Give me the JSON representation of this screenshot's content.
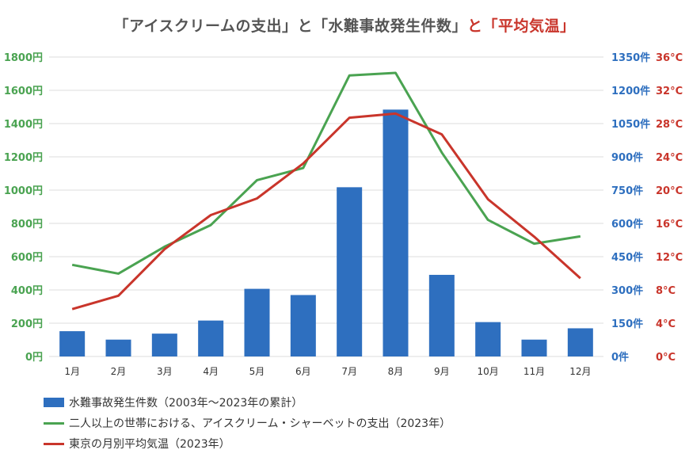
{
  "title": {
    "part1": "「アイスクリームの支出」と「水難事故発生件数」",
    "part2": "と「平均気温」"
  },
  "chart_data": {
    "type": "bar+line",
    "categories": [
      "1月",
      "2月",
      "3月",
      "4月",
      "5月",
      "6月",
      "7月",
      "8月",
      "9月",
      "10月",
      "11月",
      "12月"
    ],
    "series": [
      {
        "name": "水難事故発生件数（2003年〜2023年の累計）",
        "type": "bar",
        "axis": "right1",
        "color": "#2e6fbf",
        "values": [
          114,
          76,
          103,
          162,
          305,
          277,
          763,
          1113,
          368,
          155,
          76,
          127
        ]
      },
      {
        "name": "二人以上の世帯における、アイスクリーム・シャーベットの支出（2023年）",
        "type": "line",
        "axis": "left",
        "color": "#4aa351",
        "values": [
          551,
          498,
          660,
          790,
          1060,
          1133,
          1689,
          1705,
          1226,
          821,
          678,
          722
        ]
      },
      {
        "name": "東京の月別平均気温（2023年）",
        "type": "line",
        "axis": "right2",
        "color": "#c9352b",
        "values": [
          5.7,
          7.3,
          12.9,
          17.0,
          19.0,
          23.2,
          28.7,
          29.2,
          26.7,
          18.9,
          14.4,
          9.4
        ]
      }
    ],
    "axes": {
      "left": {
        "range": [
          0,
          1800
        ],
        "ticks": [
          "0円",
          "200円",
          "400円",
          "600円",
          "800円",
          "1000円",
          "1200円",
          "1400円",
          "1600円",
          "1800円"
        ],
        "color": "#4aa351"
      },
      "right1": {
        "range": [
          0,
          1350
        ],
        "ticks": [
          "0件",
          "150件",
          "300件",
          "450件",
          "600件",
          "750件",
          "900件",
          "1050件",
          "1200件",
          "1350件"
        ],
        "color": "#2e6fbf"
      },
      "right2": {
        "range": [
          0,
          36
        ],
        "ticks": [
          "0°C",
          "4°C",
          "8°C",
          "12°C",
          "16°C",
          "20°C",
          "24°C",
          "28°C",
          "32°C",
          "36°C"
        ],
        "color": "#c9352b"
      }
    },
    "grid": true,
    "legend_position": "bottom"
  }
}
